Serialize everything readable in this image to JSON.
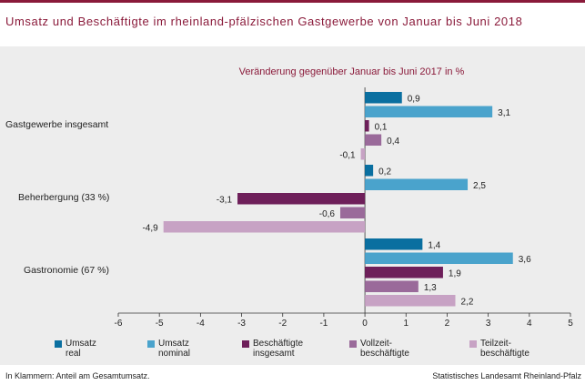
{
  "header": {
    "title": "Umsatz und Beschäftigte im rheinland-pfälzischen Gastgewerbe von Januar bis Juni 2018"
  },
  "footer": {
    "note": "In Klammern: Anteil am Gesamtumsatz.",
    "source": "Statistisches Landesamt Rheinland-Pfalz"
  },
  "chart_data": {
    "type": "bar",
    "orientation": "horizontal",
    "title": "Veränderung gegenüber Januar bis Juni 2017 in %",
    "categories": [
      "Gastgewerbe insgesamt",
      "Beherbergung (33 %)",
      "Gastronomie (67 %)"
    ],
    "series": [
      {
        "name": "Umsatz\nreal",
        "color": "#0a6fa0",
        "values": [
          0.9,
          0.2,
          1.4
        ]
      },
      {
        "name": "Umsatz\nnominal",
        "color": "#4aa3cc",
        "values": [
          3.1,
          2.5,
          3.6
        ]
      },
      {
        "name": "Beschäftigte\ninsgesamt",
        "color": "#6e1f5a",
        "values": [
          0.1,
          -3.1,
          1.9
        ]
      },
      {
        "name": "Vollzeit-\nbeschäftigte",
        "color": "#9a6a9a",
        "values": [
          0.4,
          -0.6,
          1.3
        ]
      },
      {
        "name": "Teilzeit-\nbeschäftigte",
        "color": "#c7a2c4",
        "values": [
          -0.1,
          -4.9,
          2.2
        ]
      }
    ],
    "value_labels": [
      [
        "0,9",
        "3,1",
        "0,1",
        "0,4",
        "-0,1"
      ],
      [
        "0,2",
        "2,5",
        "-3,1",
        "-0,6",
        "-4,9"
      ],
      [
        "1,4",
        "3,6",
        "1,9",
        "1,3",
        "2,2"
      ]
    ],
    "xlim": [
      -6,
      5
    ],
    "xticks": [
      "-6",
      "-5",
      "-4",
      "-3",
      "-2",
      "-1",
      "0",
      "1",
      "2",
      "3",
      "4",
      "5"
    ],
    "grid": false,
    "legend_position": "bottom"
  }
}
